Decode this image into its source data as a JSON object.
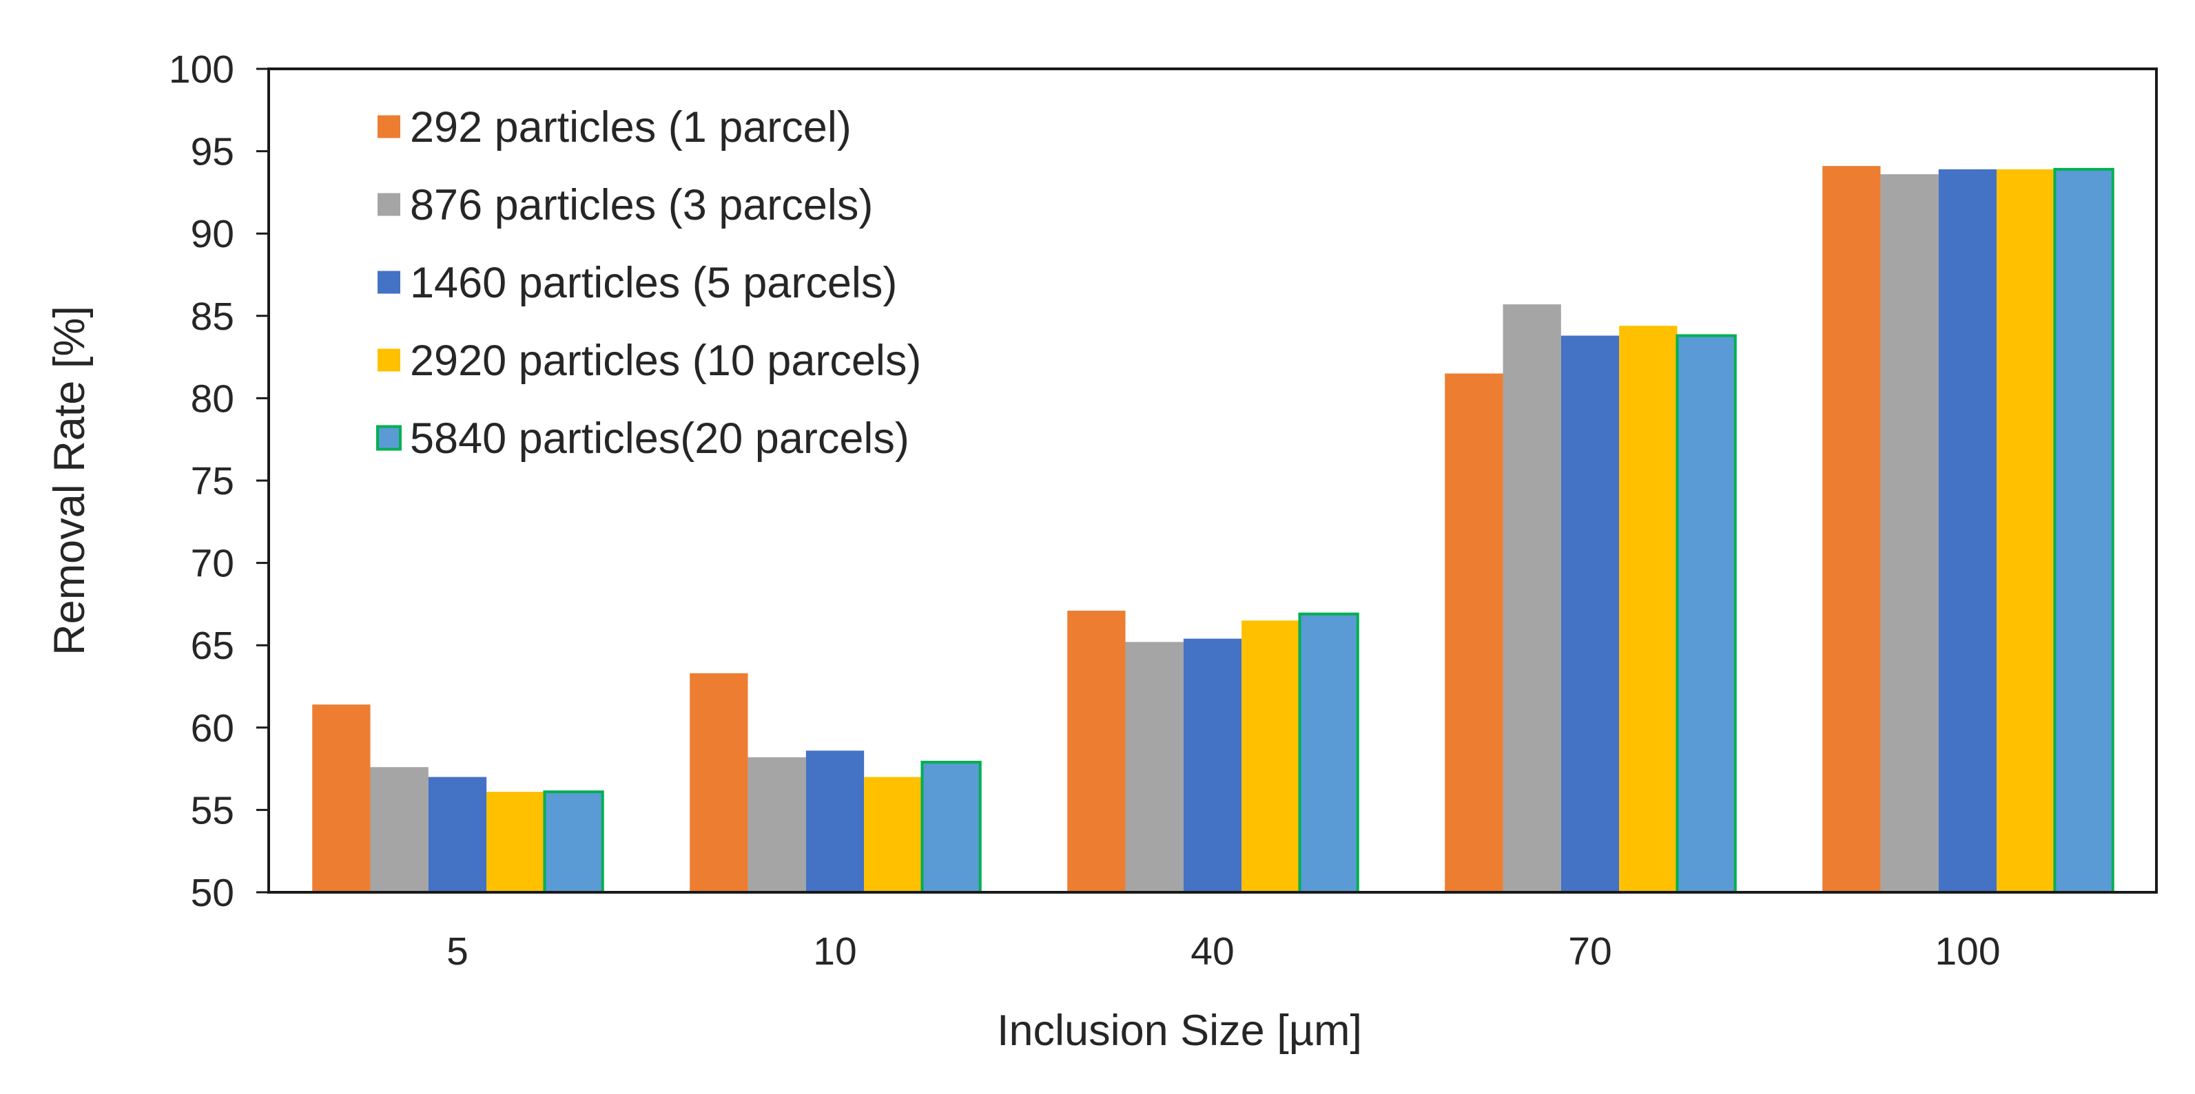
{
  "chart_data": {
    "type": "bar",
    "title": "",
    "xlabel": "Inclusion Size [µm]",
    "ylabel": "Removal Rate [%]",
    "categories": [
      "5",
      "10",
      "40",
      "70",
      "100"
    ],
    "ylim": [
      50,
      100
    ],
    "yticks": [
      "50",
      "55",
      "60",
      "65",
      "70",
      "75",
      "80",
      "85",
      "90",
      "95",
      "100"
    ],
    "grid": false,
    "legend_position": "top-left",
    "series": [
      {
        "name": "292 particles (1 parcel)",
        "color": "#ED7D31",
        "border": "#ED7D31",
        "values": [
          61.4,
          63.3,
          67.1,
          81.5,
          94.1
        ]
      },
      {
        "name": "876 particles (3 parcels)",
        "color": "#A5A5A5",
        "border": "#A5A5A5",
        "values": [
          57.6,
          58.2,
          65.2,
          85.7,
          93.6
        ]
      },
      {
        "name": "1460 particles (5 parcels)",
        "color": "#4472C4",
        "border": "#4472C4",
        "values": [
          57.0,
          58.6,
          65.4,
          83.8,
          93.9
        ]
      },
      {
        "name": "2920 particles (10 parcels)",
        "color": "#FFC000",
        "border": "#FFC000",
        "values": [
          56.1,
          57.0,
          66.5,
          84.4,
          93.9
        ]
      },
      {
        "name": "5840 particles(20 parcels)",
        "color": "#5B9BD5",
        "border": "#00B050",
        "values": [
          56.1,
          57.9,
          66.9,
          83.8,
          93.9
        ]
      }
    ]
  }
}
